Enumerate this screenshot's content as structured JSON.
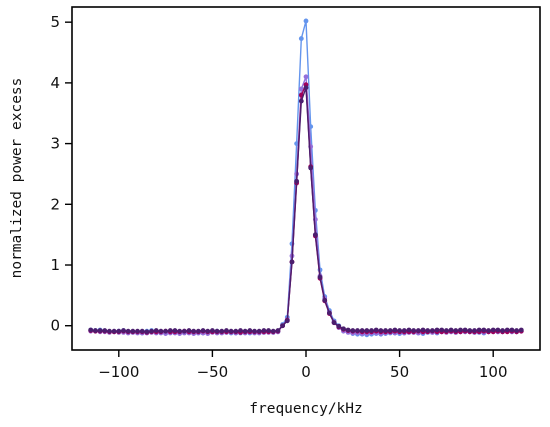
{
  "chart_data": {
    "type": "line",
    "title": "",
    "xlabel": "frequency/kHz",
    "ylabel": "normalized power excess",
    "xlim": [
      -125,
      125
    ],
    "ylim": [
      -0.4,
      5.25
    ],
    "xticks": [
      -100,
      -50,
      0,
      50,
      100
    ],
    "xtick_labels": [
      "−100",
      "−50",
      "0",
      "50",
      "100"
    ],
    "yticks": [
      0,
      1,
      2,
      3,
      4,
      5
    ],
    "ytick_labels": [
      "0",
      "1",
      "2",
      "3",
      "4",
      "5"
    ],
    "grid": false,
    "legend": "none",
    "x": [
      -115,
      -112.5,
      -110,
      -107.5,
      -105,
      -102.5,
      -100,
      -97.5,
      -95,
      -92.5,
      -90,
      -87.5,
      -85,
      -82.5,
      -80,
      -77.5,
      -75,
      -72.5,
      -70,
      -67.5,
      -65,
      -62.5,
      -60,
      -57.5,
      -55,
      -52.5,
      -50,
      -47.5,
      -45,
      -42.5,
      -40,
      -37.5,
      -35,
      -32.5,
      -30,
      -27.5,
      -25,
      -22.5,
      -20,
      -17.5,
      -15,
      -12.5,
      -10,
      -7.5,
      -5,
      -2.5,
      0,
      2.5,
      5,
      7.5,
      10,
      12.5,
      15,
      17.5,
      20,
      22.5,
      25,
      27.5,
      30,
      32.5,
      35,
      37.5,
      40,
      42.5,
      45,
      47.5,
      50,
      52.5,
      55,
      57.5,
      60,
      62.5,
      65,
      67.5,
      70,
      72.5,
      75,
      77.5,
      80,
      82.5,
      85,
      87.5,
      90,
      92.5,
      95,
      97.5,
      100,
      102.5,
      105,
      107.5,
      110,
      112.5,
      115
    ],
    "series": [
      {
        "color": "#6495ED",
        "values": [
          -0.07,
          -0.08,
          -0.07,
          -0.09,
          -0.1,
          -0.1,
          -0.09,
          -0.08,
          -0.1,
          -0.11,
          -0.1,
          -0.12,
          -0.09,
          -0.08,
          -0.09,
          -0.1,
          -0.11,
          -0.1,
          -0.1,
          -0.11,
          -0.11,
          -0.1,
          -0.11,
          -0.12,
          -0.12,
          -0.11,
          -0.1,
          -0.09,
          -0.1,
          -0.11,
          -0.12,
          -0.12,
          -0.12,
          -0.11,
          -0.12,
          -0.11,
          -0.1,
          -0.11,
          -0.1,
          -0.11,
          -0.1,
          0.02,
          0.14,
          1.35,
          3.0,
          4.73,
          5.02,
          3.28,
          1.9,
          0.92,
          0.48,
          0.25,
          0.08,
          0.0,
          -0.06,
          -0.1,
          -0.13,
          -0.14,
          -0.14,
          -0.15,
          -0.14,
          -0.13,
          -0.14,
          -0.13,
          -0.12,
          -0.12,
          -0.13,
          -0.12,
          -0.11,
          -0.11,
          -0.12,
          -0.13,
          -0.11,
          -0.11,
          -0.12,
          -0.1,
          -0.09,
          -0.1,
          -0.11,
          -0.1,
          -0.1,
          -0.1,
          -0.11,
          -0.11,
          -0.12,
          -0.1,
          -0.09,
          -0.1,
          -0.1,
          -0.09,
          -0.1,
          -0.1,
          -0.09
        ]
      },
      {
        "color": "#9370DB",
        "values": [
          -0.09,
          -0.09,
          -0.1,
          -0.1,
          -0.11,
          -0.1,
          -0.11,
          -0.11,
          -0.12,
          -0.11,
          -0.12,
          -0.12,
          -0.12,
          -0.11,
          -0.12,
          -0.12,
          -0.13,
          -0.12,
          -0.12,
          -0.13,
          -0.12,
          -0.12,
          -0.13,
          -0.12,
          -0.12,
          -0.13,
          -0.11,
          -0.12,
          -0.12,
          -0.11,
          -0.11,
          -0.12,
          -0.11,
          -0.12,
          -0.11,
          -0.12,
          -0.12,
          -0.11,
          -0.11,
          -0.11,
          -0.1,
          0.0,
          0.1,
          1.15,
          2.5,
          3.9,
          4.1,
          2.95,
          1.75,
          0.82,
          0.45,
          0.22,
          0.06,
          -0.03,
          -0.09,
          -0.11,
          -0.12,
          -0.12,
          -0.13,
          -0.13,
          -0.12,
          -0.12,
          -0.13,
          -0.12,
          -0.11,
          -0.12,
          -0.11,
          -0.12,
          -0.11,
          -0.11,
          -0.12,
          -0.11,
          -0.1,
          -0.11,
          -0.11,
          -0.1,
          -0.11,
          -0.1,
          -0.11,
          -0.1,
          -0.1,
          -0.1,
          -0.11,
          -0.1,
          -0.11,
          -0.1,
          -0.1,
          -0.1,
          -0.1,
          -0.09,
          -0.1,
          -0.1,
          -0.09
        ]
      },
      {
        "color": "#A0005A",
        "values": [
          -0.08,
          -0.09,
          -0.09,
          -0.09,
          -0.1,
          -0.1,
          -0.1,
          -0.09,
          -0.1,
          -0.1,
          -0.1,
          -0.1,
          -0.11,
          -0.1,
          -0.1,
          -0.1,
          -0.09,
          -0.1,
          -0.1,
          -0.1,
          -0.09,
          -0.1,
          -0.1,
          -0.1,
          -0.09,
          -0.1,
          -0.1,
          -0.1,
          -0.1,
          -0.1,
          -0.1,
          -0.1,
          -0.11,
          -0.1,
          -0.1,
          -0.1,
          -0.1,
          -0.1,
          -0.1,
          -0.1,
          -0.09,
          0.0,
          0.09,
          1.05,
          2.35,
          3.8,
          3.97,
          2.62,
          1.48,
          0.78,
          0.41,
          0.2,
          0.05,
          -0.02,
          -0.06,
          -0.08,
          -0.09,
          -0.09,
          -0.1,
          -0.1,
          -0.1,
          -0.09,
          -0.1,
          -0.1,
          -0.1,
          -0.09,
          -0.1,
          -0.1,
          -0.1,
          -0.1,
          -0.09,
          -0.1,
          -0.1,
          -0.09,
          -0.1,
          -0.1,
          -0.1,
          -0.09,
          -0.1,
          -0.1,
          -0.09,
          -0.1,
          -0.1,
          -0.1,
          -0.09,
          -0.1,
          -0.1,
          -0.09,
          -0.1,
          -0.1,
          -0.09,
          -0.1,
          -0.09
        ]
      },
      {
        "color": "#4B1E6E",
        "values": [
          -0.07,
          -0.08,
          -0.08,
          -0.08,
          -0.09,
          -0.09,
          -0.09,
          -0.08,
          -0.09,
          -0.09,
          -0.09,
          -0.09,
          -0.1,
          -0.09,
          -0.08,
          -0.09,
          -0.09,
          -0.08,
          -0.08,
          -0.09,
          -0.09,
          -0.08,
          -0.09,
          -0.09,
          -0.08,
          -0.09,
          -0.08,
          -0.09,
          -0.09,
          -0.08,
          -0.09,
          -0.09,
          -0.08,
          -0.09,
          -0.08,
          -0.09,
          -0.09,
          -0.08,
          -0.08,
          -0.09,
          -0.08,
          0.0,
          0.08,
          1.05,
          2.38,
          3.7,
          3.92,
          2.6,
          1.5,
          0.8,
          0.42,
          0.21,
          0.05,
          -0.01,
          -0.05,
          -0.07,
          -0.08,
          -0.08,
          -0.08,
          -0.08,
          -0.08,
          -0.07,
          -0.08,
          -0.08,
          -0.08,
          -0.07,
          -0.08,
          -0.08,
          -0.07,
          -0.08,
          -0.08,
          -0.07,
          -0.08,
          -0.08,
          -0.07,
          -0.07,
          -0.08,
          -0.07,
          -0.08,
          -0.07,
          -0.07,
          -0.08,
          -0.08,
          -0.07,
          -0.07,
          -0.08,
          -0.07,
          -0.07,
          -0.08,
          -0.07,
          -0.07,
          -0.08,
          -0.07
        ]
      }
    ]
  }
}
